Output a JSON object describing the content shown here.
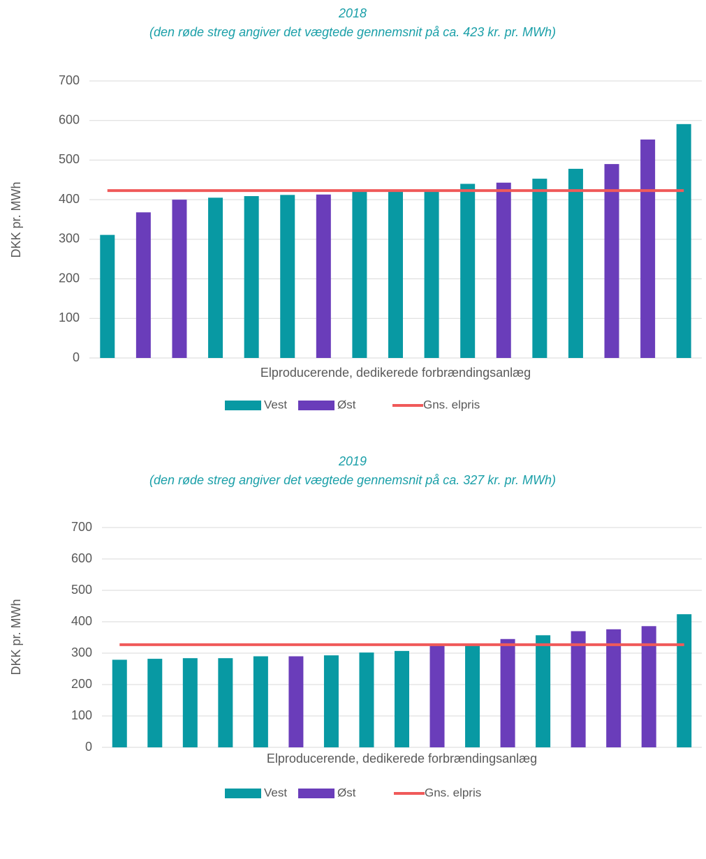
{
  "chart_data": [
    {
      "type": "bar",
      "title": "2018",
      "subtitle": "(den røde streg angiver det vægtede gennemsnit på ca. 423 kr. pr. MWh)",
      "x_label": "Elproducerende, dedikerede forbrændingsanlæg",
      "y_label": "DKK pr. MWh",
      "categories": [
        null,
        null,
        null,
        null,
        null,
        null,
        null,
        null,
        null,
        null,
        null,
        null,
        null,
        null,
        null,
        null,
        null
      ],
      "series": [
        {
          "name": "Vest",
          "color": "#0899a3",
          "values": [
            311,
            null,
            null,
            405,
            409,
            412,
            null,
            420,
            422,
            423,
            440,
            null,
            453,
            478,
            null,
            null,
            591
          ]
        },
        {
          "name": "Øst",
          "color": "#6a3dba",
          "values": [
            null,
            368,
            400,
            null,
            null,
            null,
            413,
            null,
            null,
            null,
            null,
            443,
            null,
            null,
            490,
            552,
            null
          ]
        },
        {
          "name": "Gns. elpris",
          "type": "line",
          "color": "#f05a5a",
          "values": [
            423,
            423,
            423,
            423,
            423,
            423,
            423,
            423,
            423,
            423,
            423,
            423,
            423,
            423,
            423,
            423,
            423
          ]
        }
      ],
      "ylim": [
        0,
        700
      ],
      "yticks": [
        0,
        100,
        200,
        300,
        400,
        500,
        600,
        700
      ],
      "grid": true,
      "legend": "bottom"
    },
    {
      "type": "bar",
      "title": "2019",
      "subtitle": "(den røde streg angiver det vægtede gennemsnit på ca. 327 kr. pr. MWh)",
      "x_label": "Elproducerende, dedikerede forbrændingsanlæg",
      "y_label": "DKK pr. MWh",
      "categories": [
        null,
        null,
        null,
        null,
        null,
        null,
        null,
        null,
        null,
        null,
        null,
        null,
        null,
        null,
        null,
        null,
        null
      ],
      "series": [
        {
          "name": "Vest",
          "color": "#0899a3",
          "values": [
            279,
            282,
            284,
            284,
            290,
            null,
            293,
            302,
            307,
            null,
            325,
            null,
            357,
            null,
            null,
            null,
            424
          ]
        },
        {
          "name": "Øst",
          "color": "#6a3dba",
          "values": [
            null,
            null,
            null,
            null,
            null,
            290,
            null,
            null,
            null,
            325,
            null,
            345,
            null,
            370,
            376,
            386,
            null
          ]
        },
        {
          "name": "Gns. elpris",
          "type": "line",
          "color": "#f05a5a",
          "values": [
            327,
            327,
            327,
            327,
            327,
            327,
            327,
            327,
            327,
            327,
            327,
            327,
            327,
            327,
            327,
            327,
            327
          ]
        }
      ],
      "ylim": [
        0,
        700
      ],
      "yticks": [
        0,
        100,
        200,
        300,
        400,
        500,
        600,
        700
      ],
      "grid": true,
      "legend": "bottom"
    }
  ]
}
